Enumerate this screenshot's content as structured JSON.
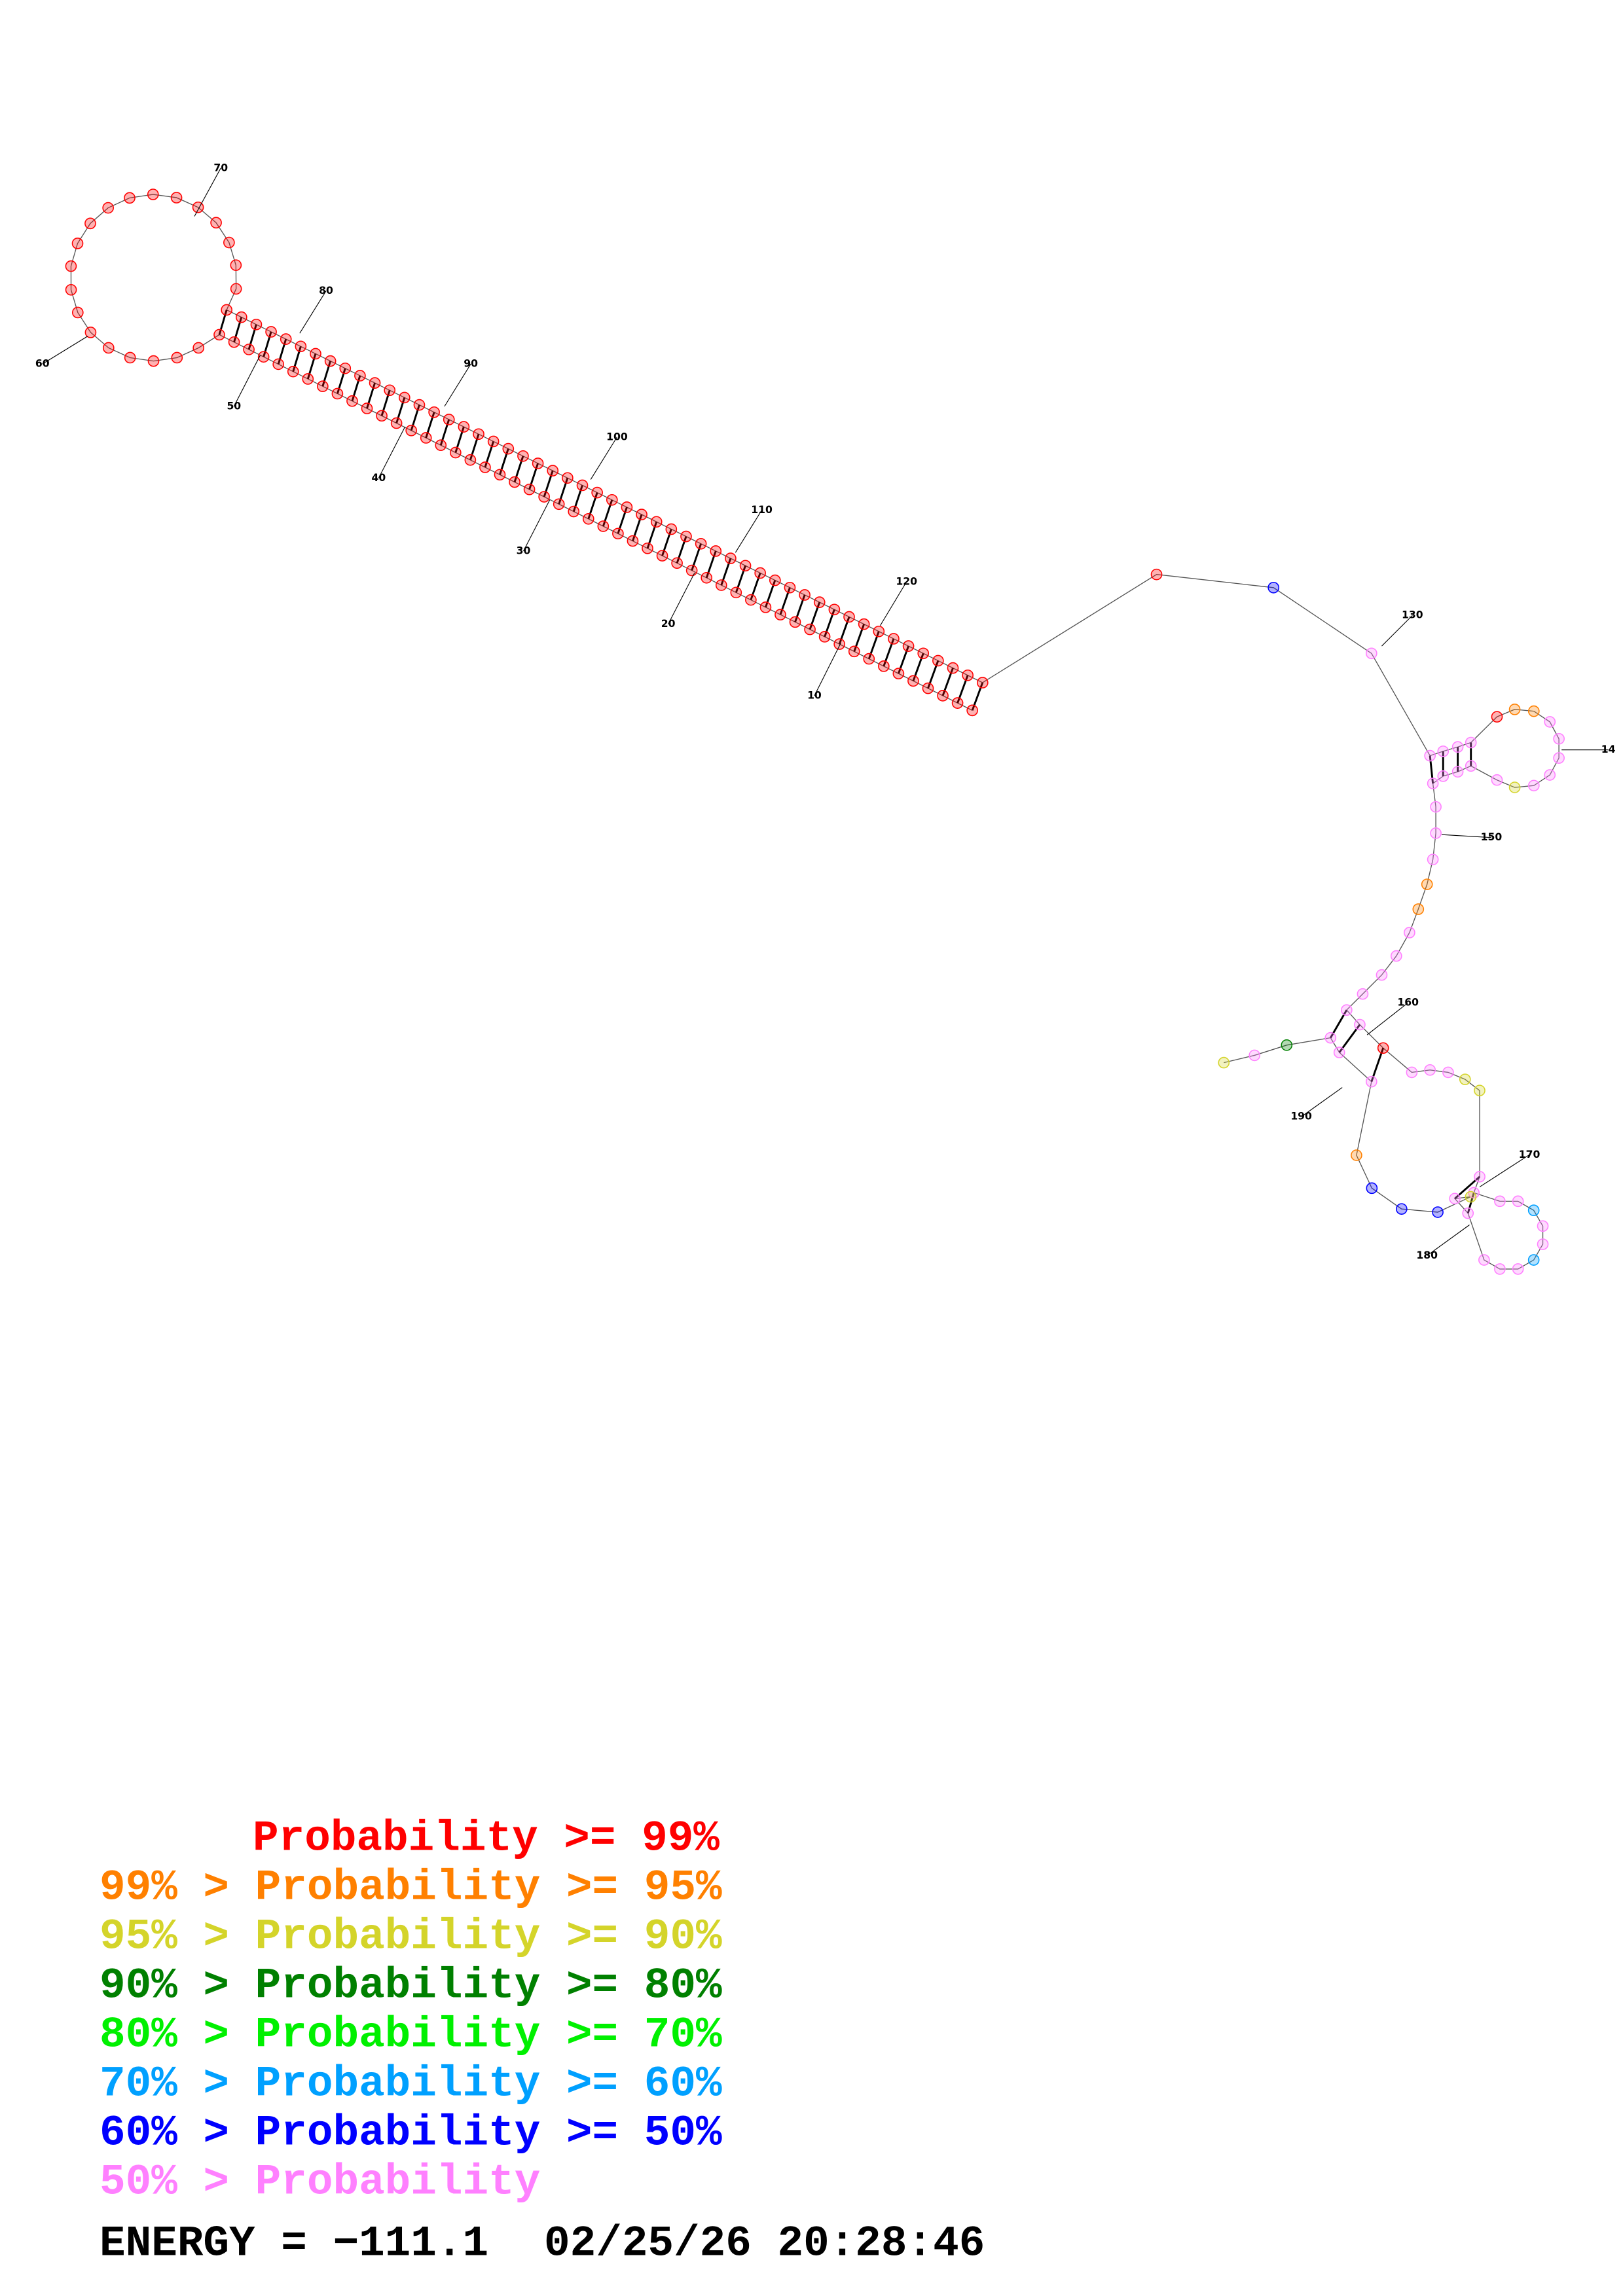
{
  "structure": {
    "position_labels": [
      "10",
      "20",
      "30",
      "40",
      "50",
      "60",
      "70",
      "80",
      "90",
      "100",
      "110",
      "120",
      "130",
      "14",
      "150",
      "160",
      "170",
      "180",
      "190"
    ]
  },
  "legend": [
    {
      "text": "Probability >= 99%",
      "color": "#ff0000"
    },
    {
      "text": "99% > Probability >= 95%",
      "color": "#ff8000"
    },
    {
      "text": "95% > Probability >= 90%",
      "color": "#d4d42a"
    },
    {
      "text": "90% > Probability >= 80%",
      "color": "#008000"
    },
    {
      "text": "80% > Probability >= 70%",
      "color": "#00f000"
    },
    {
      "text": "70% > Probability >= 60%",
      "color": "#00a0ff"
    },
    {
      "text": "60% > Probability >= 50%",
      "color": "#0000ff"
    },
    {
      "text": "50% > Probability",
      "color": "#ff80ff"
    }
  ],
  "energy": "ENERGY = −111.1",
  "timestamp": "02/25/26 20:28:46"
}
